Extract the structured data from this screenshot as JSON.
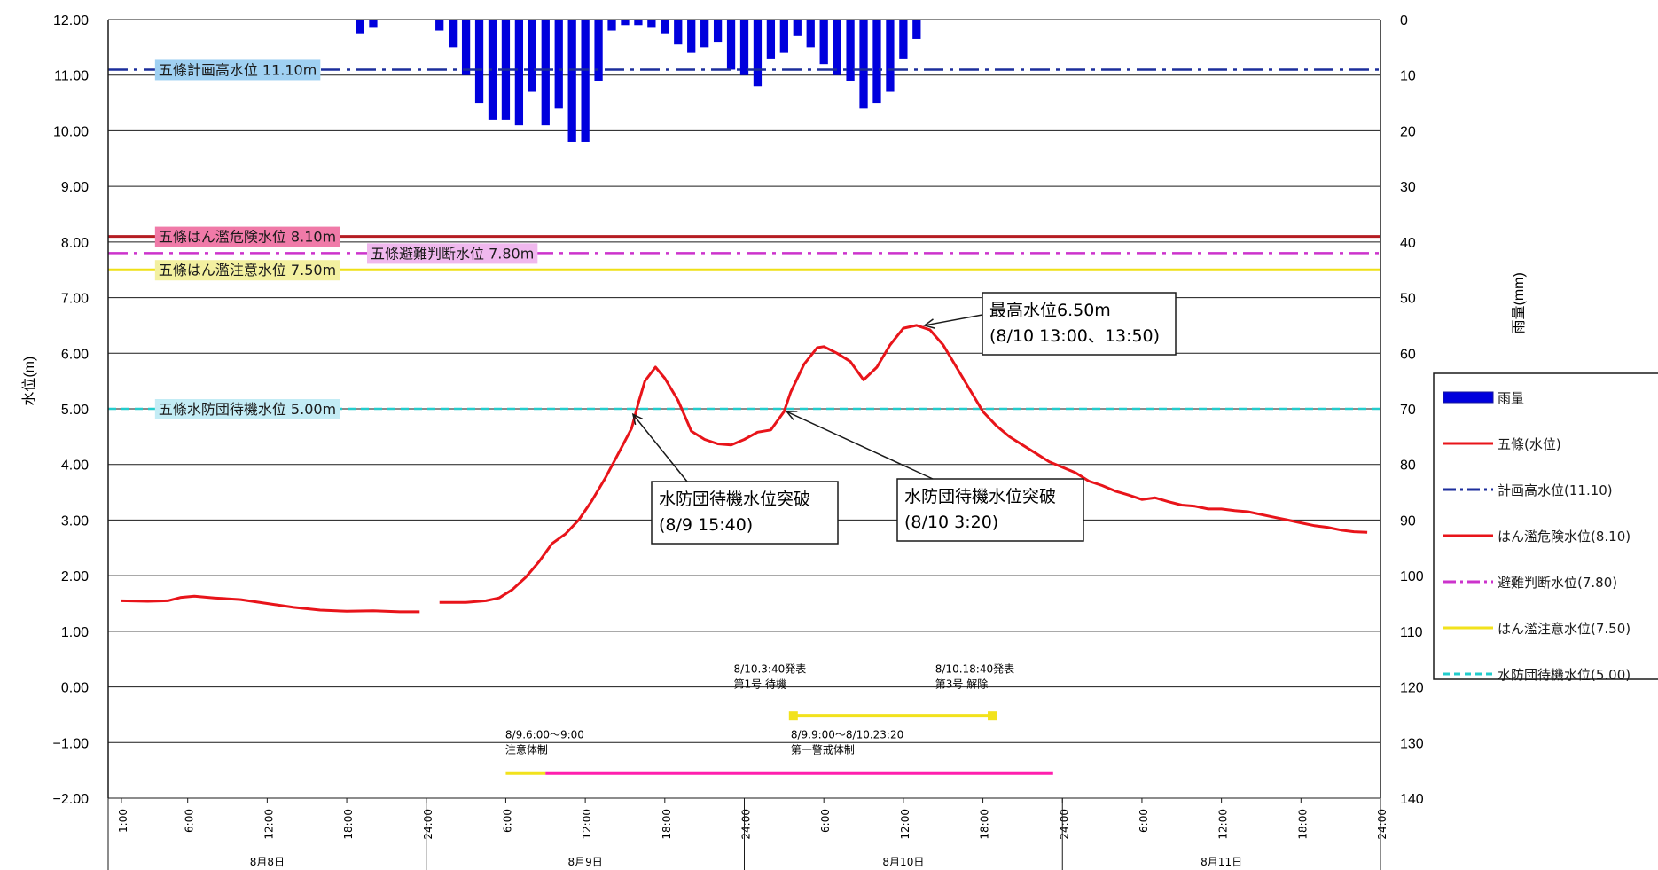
{
  "chart_data": {
    "type": "line",
    "ylabel_left": "水位(m)",
    "ylabel_right": "雨量(mm)",
    "y_left": {
      "min": -2.0,
      "max": 12.0,
      "step": 1.0,
      "ticks": [
        "12.00",
        "11.00",
        "10.00",
        "9.00",
        "8.00",
        "7.00",
        "6.00",
        "5.00",
        "4.00",
        "3.00",
        "2.00",
        "1.00",
        "0.00",
        "−1.00",
        "−2.00"
      ]
    },
    "y_right": {
      "min": 0,
      "max": 140,
      "step": 10,
      "inverted": true,
      "ticks": [
        "0",
        "10",
        "20",
        "30",
        "40",
        "50",
        "60",
        "70",
        "80",
        "90",
        "100",
        "110",
        "120",
        "130",
        "140"
      ]
    },
    "x_hours_total": 96,
    "x_tick_labels": [
      "1:00",
      "6:00",
      "12:00",
      "18:00",
      "24:00",
      "6:00",
      "12:00",
      "18:00",
      "24:00",
      "6:00",
      "12:00",
      "18:00",
      "24:00",
      "6:00",
      "12:00",
      "18:00",
      "24:00"
    ],
    "x_tick_hours": [
      1,
      6,
      12,
      18,
      24,
      30,
      36,
      42,
      48,
      54,
      60,
      66,
      72,
      78,
      84,
      90,
      96
    ],
    "days": [
      "8月8日",
      "8月9日",
      "8月10日",
      "8月11日"
    ],
    "legend": [
      {
        "label": "雨量",
        "color": "#0000dd",
        "style": "bar"
      },
      {
        "label": "五條(水位)",
        "color": "#e8141a",
        "style": "solid"
      },
      {
        "label": "計画高水位(11.10)",
        "color": "#1c2e9c",
        "style": "dashdot"
      },
      {
        "label": "はん濫危険水位(8.10)",
        "color": "#e8141a",
        "style": "solid"
      },
      {
        "label": "避難判断水位(7.80)",
        "color": "#cc33cc",
        "style": "dashdot"
      },
      {
        "label": "はん濫注意水位(7.50)",
        "color": "#f2e21c",
        "style": "solid"
      },
      {
        "label": "水防団待機水位(5.00)",
        "color": "#22cccc",
        "style": "dash"
      }
    ],
    "reference_lines": [
      {
        "label": "五條計画高水位 11.10m",
        "value": 11.1,
        "color": "#1c2e9c",
        "style": "dashdot",
        "label_bg": "#9fd0f2",
        "label_hour": 3
      },
      {
        "label": "五條はん濫危険水位 8.10m",
        "value": 8.1,
        "color": "#b51c22",
        "style": "solid",
        "label_bg": "#f07aa8",
        "label_hour": 3
      },
      {
        "label": "五條避難判断水位 7.80m",
        "value": 7.8,
        "color": "#cc33cc",
        "style": "dashdot",
        "label_bg": "#f0b8ee",
        "label_hour": 19
      },
      {
        "label": "五條はん濫注意水位 7.50m",
        "value": 7.5,
        "color": "#efe015",
        "style": "solid",
        "label_bg": "#f3f0a0",
        "label_hour": 3
      },
      {
        "label": "五條水防団待機水位 5.00m",
        "value": 5.0,
        "color": "#22cccc",
        "style": "dash",
        "label_bg": "#c3ecf5",
        "label_hour": 3
      }
    ],
    "water_level_series": {
      "name": "五條(水位)",
      "color": "#e8141a",
      "segments": [
        [
          [
            1,
            1.55
          ],
          [
            3,
            1.54
          ],
          [
            4.5,
            1.55
          ],
          [
            5.5,
            1.61
          ],
          [
            6.5,
            1.63
          ],
          [
            8,
            1.6
          ],
          [
            10,
            1.57
          ],
          [
            12,
            1.5
          ],
          [
            14,
            1.43
          ],
          [
            16,
            1.38
          ],
          [
            18,
            1.36
          ],
          [
            20,
            1.37
          ],
          [
            22,
            1.35
          ],
          [
            23.5,
            1.35
          ]
        ],
        [
          [
            25,
            1.52
          ],
          [
            27,
            1.52
          ],
          [
            28.5,
            1.55
          ],
          [
            29.5,
            1.6
          ],
          [
            30.5,
            1.75
          ],
          [
            31.5,
            1.97
          ],
          [
            32.5,
            2.25
          ],
          [
            33.5,
            2.58
          ],
          [
            34.5,
            2.75
          ],
          [
            35.5,
            3.0
          ],
          [
            36.5,
            3.35
          ],
          [
            37.5,
            3.75
          ],
          [
            38.5,
            4.2
          ],
          [
            39.5,
            4.65
          ],
          [
            40,
            5.1
          ],
          [
            40.5,
            5.5
          ],
          [
            41.3,
            5.75
          ],
          [
            42,
            5.55
          ],
          [
            43,
            5.15
          ],
          [
            44,
            4.6
          ],
          [
            45,
            4.45
          ],
          [
            46,
            4.37
          ],
          [
            47,
            4.35
          ],
          [
            48,
            4.45
          ],
          [
            49,
            4.58
          ],
          [
            50,
            4.62
          ],
          [
            51,
            4.95
          ],
          [
            51.5,
            5.3
          ],
          [
            52.5,
            5.8
          ],
          [
            53.5,
            6.1
          ],
          [
            54,
            6.12
          ],
          [
            55,
            6.0
          ],
          [
            56,
            5.85
          ],
          [
            57,
            5.52
          ],
          [
            58,
            5.75
          ],
          [
            59,
            6.15
          ],
          [
            60,
            6.45
          ],
          [
            61,
            6.5
          ],
          [
            62,
            6.42
          ],
          [
            63,
            6.15
          ],
          [
            64,
            5.75
          ],
          [
            65,
            5.35
          ],
          [
            66,
            4.95
          ],
          [
            67,
            4.7
          ],
          [
            68,
            4.5
          ],
          [
            69,
            4.35
          ],
          [
            70,
            4.2
          ],
          [
            71,
            4.05
          ],
          [
            72,
            3.95
          ],
          [
            73,
            3.85
          ],
          [
            74,
            3.7
          ],
          [
            75,
            3.62
          ],
          [
            76,
            3.52
          ],
          [
            77,
            3.45
          ],
          [
            78,
            3.37
          ],
          [
            79,
            3.4
          ],
          [
            80,
            3.33
          ],
          [
            81,
            3.27
          ],
          [
            82,
            3.25
          ],
          [
            83,
            3.2
          ],
          [
            84,
            3.2
          ],
          [
            85,
            3.17
          ],
          [
            86,
            3.15
          ],
          [
            87,
            3.1
          ],
          [
            88,
            3.05
          ],
          [
            89,
            3.0
          ],
          [
            90,
            2.95
          ],
          [
            91,
            2.9
          ],
          [
            92,
            2.87
          ],
          [
            93,
            2.82
          ],
          [
            94,
            2.79
          ],
          [
            95,
            2.78
          ]
        ]
      ]
    },
    "rainfall_series": {
      "name": "雨量",
      "color": "#0000dd",
      "hours": [
        19,
        20,
        25,
        26,
        27,
        28,
        29,
        30,
        31,
        32,
        33,
        34,
        35,
        36,
        37,
        38,
        39,
        40,
        41,
        42,
        43,
        44,
        45,
        46,
        47,
        48,
        49,
        50,
        51,
        52,
        53,
        54,
        55,
        56,
        57,
        58,
        59,
        60,
        61
      ],
      "values_mm": [
        2.5,
        1.5,
        2,
        5,
        10,
        15,
        18,
        18,
        19,
        13,
        19,
        16,
        22,
        22,
        11,
        2,
        1,
        1,
        1.5,
        2.5,
        4.5,
        6,
        5,
        4,
        9,
        10,
        12,
        7,
        6,
        3,
        5,
        8,
        10,
        11,
        16,
        15,
        13,
        7,
        3.5
      ]
    },
    "annotations": [
      {
        "lines": [
          "最高水位6.50m",
          "(8/10  13:00、13:50)"
        ],
        "arrow_to": {
          "hour": 61.6,
          "value": 6.5
        }
      },
      {
        "lines": [
          "水防団待機水位突破",
          "(8/9  15:40)"
        ],
        "arrow_to": {
          "hour": 39.6,
          "value": 4.9
        }
      },
      {
        "lines": [
          "水防団待機水位突破",
          "(8/10  3:20)"
        ],
        "arrow_to": {
          "hour": 51.2,
          "value": 4.95
        }
      }
    ],
    "alert_periods": [
      {
        "lines": [
          "8/9.6:00～9:00",
          "注意体制"
        ],
        "start_hour": 30,
        "end_hour": 33,
        "value": -1.55,
        "color": "#f2e21c"
      },
      {
        "lines": [
          "8/9.9:00～8/10.23:20",
          "第一警戒体制"
        ],
        "start_hour": 33,
        "end_hour": 71.3,
        "value": -1.55,
        "color": "#ff1fae"
      },
      {
        "lines": [
          "8/10.3:40発表",
          "第1号 待機"
        ],
        "start_hour": 51.7,
        "end_hour": 51.7,
        "value": null
      },
      {
        "lines": [
          "8/10.18:40発表",
          "第3号 解除"
        ],
        "start_hour": 66.7,
        "end_hour": 66.7,
        "value": null
      },
      {
        "lines": [],
        "start_hour": 51.7,
        "end_hour": 66.7,
        "value": -0.52,
        "color": "#f2e21c"
      }
    ]
  }
}
